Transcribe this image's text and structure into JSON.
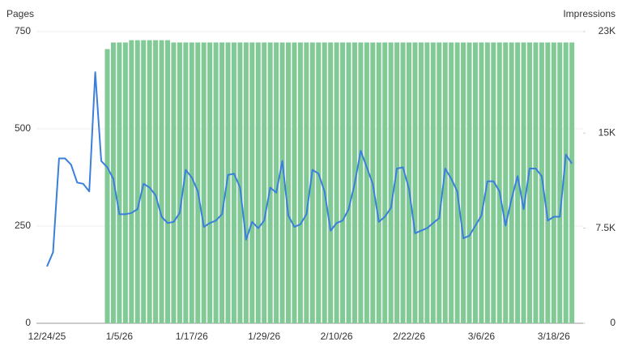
{
  "chart_data": {
    "type": "bar-line",
    "categories": [
      "12/24/25",
      null,
      null,
      null,
      null,
      null,
      null,
      null,
      null,
      null,
      null,
      null,
      "1/5/26",
      null,
      null,
      null,
      null,
      null,
      null,
      null,
      null,
      null,
      null,
      null,
      "1/17/26",
      null,
      null,
      null,
      null,
      null,
      null,
      null,
      null,
      null,
      null,
      null,
      "1/29/26",
      null,
      null,
      null,
      null,
      null,
      null,
      null,
      null,
      null,
      null,
      null,
      "2/10/26",
      null,
      null,
      null,
      null,
      null,
      null,
      null,
      null,
      null,
      null,
      null,
      "2/22/26",
      null,
      null,
      null,
      null,
      null,
      null,
      null,
      null,
      null,
      null,
      null,
      "3/6/26",
      null,
      null,
      null,
      null,
      null,
      null,
      null,
      null,
      null,
      null,
      null,
      "3/18/26",
      null,
      null,
      null
    ],
    "series": [
      {
        "name": "Pages",
        "type": "bar",
        "axis": "y",
        "color": "#81c995",
        "values": [
          null,
          null,
          null,
          null,
          null,
          null,
          null,
          null,
          null,
          null,
          705,
          722,
          722,
          722,
          728,
          728,
          728,
          728,
          728,
          728,
          728,
          722,
          722,
          722,
          722,
          722,
          722,
          722,
          722,
          722,
          722,
          722,
          722,
          722,
          722,
          722,
          722,
          722,
          722,
          722,
          722,
          722,
          722,
          722,
          722,
          722,
          722,
          722,
          722,
          722,
          722,
          722,
          722,
          722,
          722,
          722,
          722,
          722,
          722,
          722,
          722,
          722,
          722,
          722,
          722,
          722,
          722,
          722,
          722,
          722,
          722,
          722,
          722,
          722,
          722,
          722,
          722,
          722,
          722,
          722,
          722,
          722,
          722,
          722,
          722,
          722,
          722,
          722
        ]
      },
      {
        "name": "Impressions",
        "type": "line",
        "axis": "y2",
        "color": "#3b7fdc",
        "values": [
          4480,
          5600,
          13000,
          13000,
          12500,
          11100,
          11000,
          10400,
          19800,
          12800,
          12300,
          11400,
          8600,
          8600,
          8700,
          9000,
          11000,
          10700,
          10100,
          8400,
          7900,
          8000,
          8700,
          12100,
          11500,
          10400,
          7600,
          7900,
          8100,
          8600,
          11700,
          11800,
          10700,
          6600,
          8000,
          7500,
          8100,
          10700,
          10300,
          12800,
          8500,
          7600,
          7800,
          8600,
          12100,
          11800,
          10400,
          7300,
          7900,
          8100,
          9000,
          11000,
          13600,
          12300,
          11000,
          8000,
          8400,
          9100,
          12200,
          12300,
          10600,
          7100,
          7300,
          7500,
          7900,
          8300,
          12200,
          11400,
          10400,
          6700,
          6900,
          7700,
          8500,
          11200,
          11200,
          10400,
          7700,
          9800,
          11600,
          9000,
          12200,
          12200,
          11600,
          8100,
          8400,
          8400,
          13300,
          12600
        ]
      }
    ],
    "ylim": [
      0,
      750
    ],
    "yticks": [
      0,
      250,
      500,
      750
    ],
    "y2lim": [
      0,
      23000
    ],
    "y2ticks": [
      0,
      {
        "value": 7500,
        "label": "7.5K"
      },
      {
        "value": 15000,
        "label": "15K"
      },
      {
        "value": 23000,
        "label": "23K"
      }
    ]
  }
}
